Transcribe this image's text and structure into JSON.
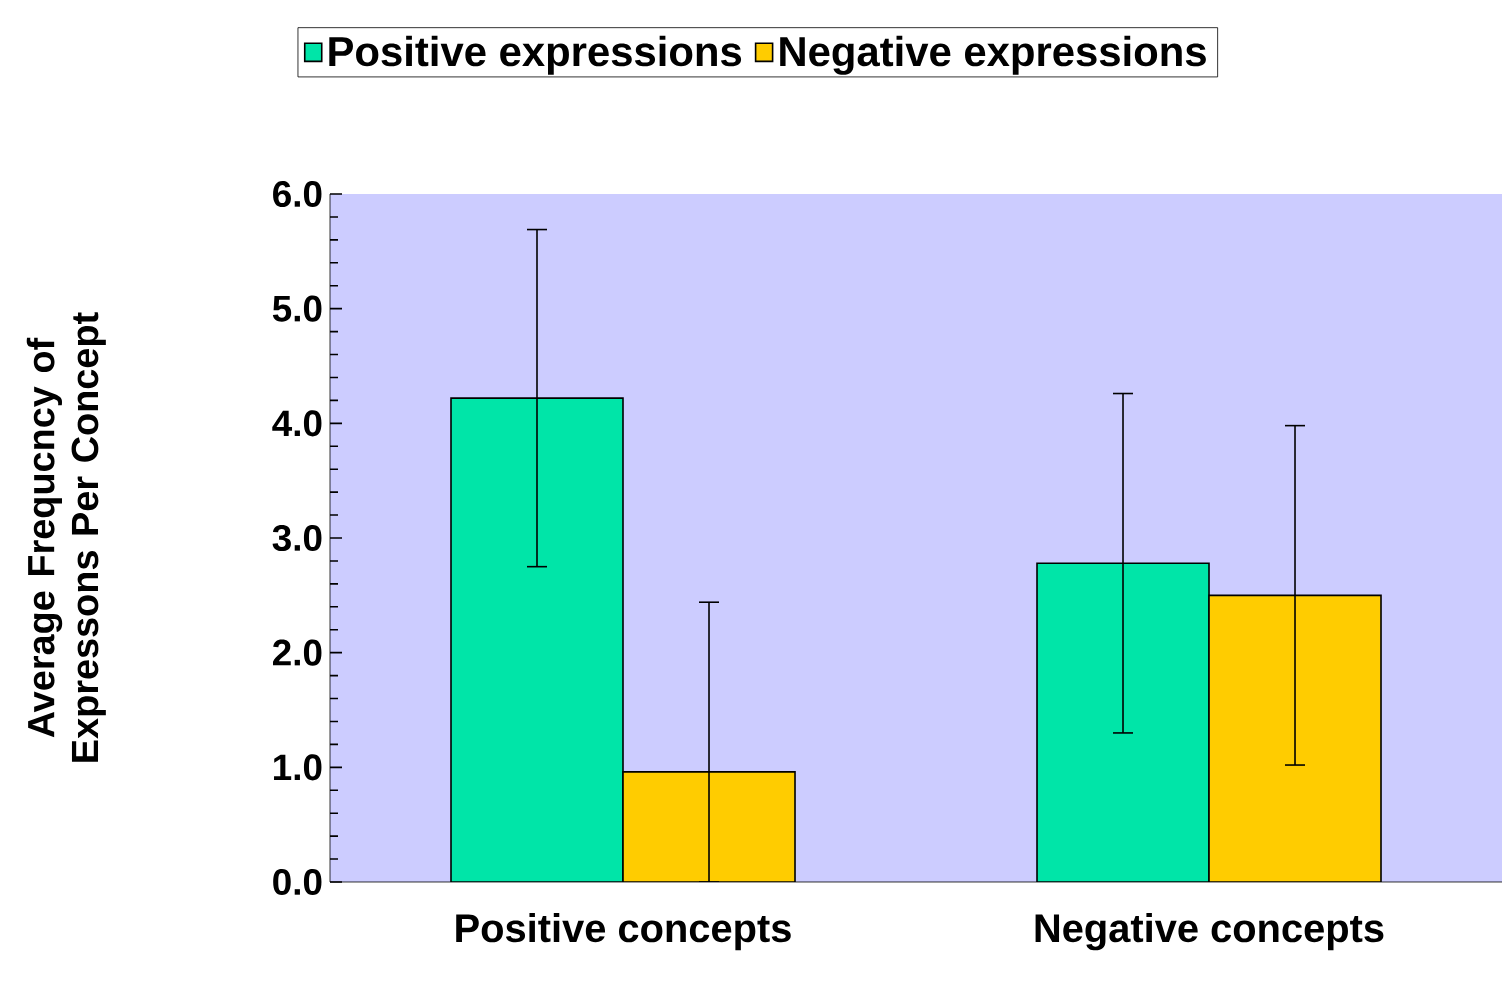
{
  "chart_data": {
    "type": "bar",
    "ylabel": "Average Frequcncy of Expressons Per Concept",
    "categories": [
      "Positive concepts",
      "Negative concepts"
    ],
    "series": [
      {
        "name": "Positive expressions",
        "color": "#00e5a8",
        "values": [
          4.22,
          2.78
        ],
        "errors": [
          1.47,
          1.48
        ]
      },
      {
        "name": "Negative expressions",
        "color": "#ffcc00",
        "values": [
          0.96,
          2.5
        ],
        "errors": [
          [
            0,
            2.44
          ],
          1.48
        ]
      }
    ],
    "ylim": [
      0,
      6
    ],
    "yticks": [
      {
        "value": 0,
        "label": "0.0"
      },
      {
        "value": 1,
        "label": "1.0"
      },
      {
        "value": 2,
        "label": "2.0"
      },
      {
        "value": 3,
        "label": "3.0"
      },
      {
        "value": 4,
        "label": "4.0"
      },
      {
        "value": 5,
        "label": "5.0"
      },
      {
        "value": 6,
        "label": "6.0"
      }
    ],
    "grid": false,
    "legend": "top"
  }
}
